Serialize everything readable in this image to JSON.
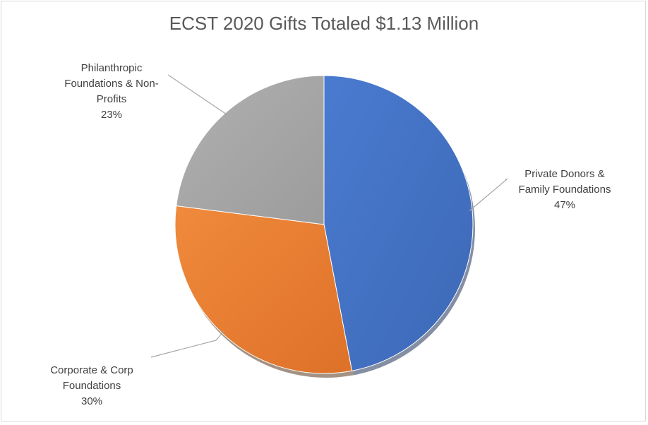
{
  "chart_data": {
    "type": "pie",
    "title": "ECST 2020 Gifts Totaled $1.13 Million",
    "slices": [
      {
        "label": "Private Donors & Family Foundations",
        "display_label": "Private Donors &\nFamily Foundations",
        "value": 47,
        "value_label": "47%",
        "color": "#4472c4"
      },
      {
        "label": "Corporate & Corp Foundations",
        "display_label": "Corporate & Corp\nFoundations",
        "value": 30,
        "value_label": "30%",
        "color": "#ed7d31"
      },
      {
        "label": "Philanthropic Foundations & Non-Profits",
        "display_label": "Philanthropic\nFoundations & Non-\nProfits",
        "value": 23,
        "value_label": "23%",
        "color": "#a5a5a5"
      }
    ],
    "legend": "none",
    "data_labels": "outside-with-leader-lines"
  }
}
